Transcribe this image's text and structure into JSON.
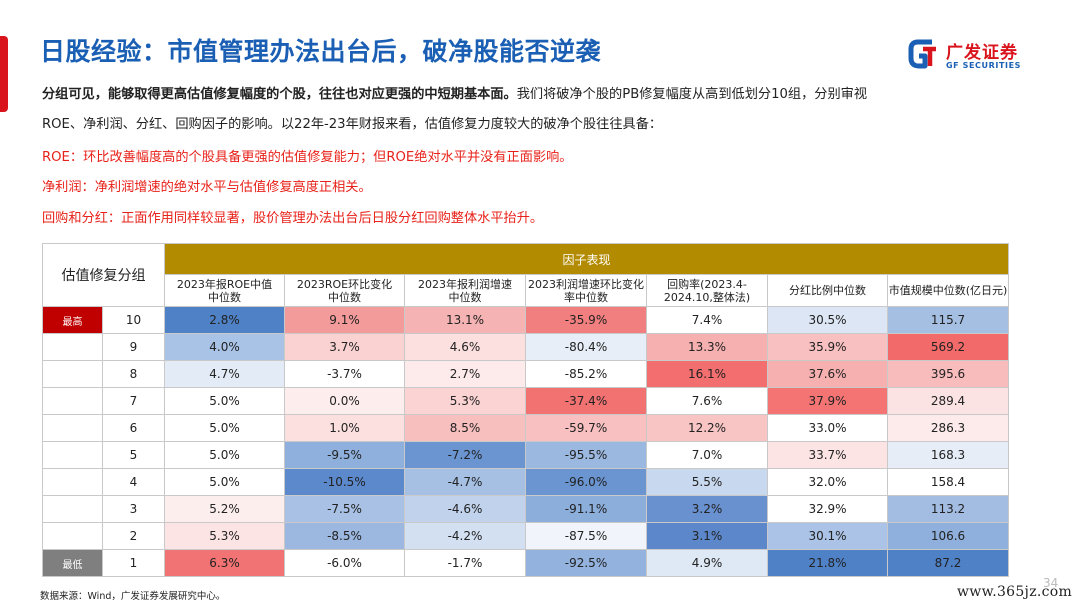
{
  "header": {
    "title": "日股经验：市值管理办法出台后，破净股能否逆袭",
    "logo_cn": "广发证券",
    "logo_en": "GF SECURITIES"
  },
  "body": {
    "p1_bold": "分组可见，能够取得更高估值修复幅度的个股，往往也对应更强的中短期基本面。",
    "p1_rest": "我们将破净个股的PB修复幅度从高到低划分10组，分别审视",
    "p2": "ROE、净利润、分红、回购因子的影响。以22年-23年财报来看，估值修复力度较大的破净个股往往具备：",
    "roe_point": "ROE：环比改善幅度高的个股具备更强的估值修复能力；但ROE绝对水平并没有正面影响。",
    "profit_point": "净利润：净利润增速的绝对水平与估值修复高度正相关。",
    "buyback_point": "回购和分红：正面作用同样较显著，股价管理办法出台后日股分红回购整体水平抬升。"
  },
  "table": {
    "group_header": "估值修复分组",
    "factor_header": "因子表现",
    "columns": [
      {
        "l1": "2023年报ROE中值",
        "l2": "中位数"
      },
      {
        "l1": "2023ROE环比变化",
        "l2": "中位数"
      },
      {
        "l1": "2023年报利润增速",
        "l2": "中位数"
      },
      {
        "l1": "2023利润增速环比变化",
        "l2": "率中位数"
      },
      {
        "l1": "回购率(2023.4-",
        "l2": "2024.10,整体法)"
      },
      {
        "l1": "分红比例中位数",
        "l2": ""
      },
      {
        "l1": "市值规模中位数(亿日元)",
        "l2": ""
      }
    ],
    "badge_high": "最高",
    "badge_low": "最低",
    "rows": [
      {
        "group": "10",
        "cells": [
          "2.8%",
          "9.1%",
          "13.1%",
          "-35.9%",
          "7.4%",
          "30.5%",
          "115.7"
        ],
        "colors": [
          "#4f81c7",
          "#f39b9b",
          "#f6b3b3",
          "#f27f7f",
          "#ffffff",
          "#dce6f4",
          "#a5bfe2"
        ]
      },
      {
        "group": "9",
        "cells": [
          "4.0%",
          "3.7%",
          "4.6%",
          "-80.4%",
          "13.3%",
          "35.9%",
          "569.2"
        ],
        "colors": [
          "#a9c3e6",
          "#fbd2d2",
          "#fce0e0",
          "#e7eef8",
          "#f6b0b0",
          "#f8c0c0",
          "#f26a6a"
        ]
      },
      {
        "group": "8",
        "cells": [
          "4.7%",
          "-3.7%",
          "2.7%",
          "-85.2%",
          "16.1%",
          "37.6%",
          "395.6"
        ],
        "colors": [
          "#e3ebf6",
          "#ffffff",
          "#fdeaea",
          "#ffffff",
          "#f36e6e",
          "#f6b0b0",
          "#f8bcbc"
        ]
      },
      {
        "group": "7",
        "cells": [
          "5.0%",
          "0.0%",
          "5.3%",
          "-37.4%",
          "7.6%",
          "37.9%",
          "289.4"
        ],
        "colors": [
          "#ffffff",
          "#fdeded",
          "#fbd3d3",
          "#f27171",
          "#ffffff",
          "#f47474",
          "#fce3e3"
        ]
      },
      {
        "group": "6",
        "cells": [
          "5.0%",
          "1.0%",
          "8.5%",
          "-59.7%",
          "12.2%",
          "33.0%",
          "286.3"
        ],
        "colors": [
          "#ffffff",
          "#fce0e0",
          "#f8bfbf",
          "#f8c0c0",
          "#f8c4c4",
          "#ffffff",
          "#fdeaea"
        ]
      },
      {
        "group": "5",
        "cells": [
          "5.0%",
          "-9.5%",
          "-7.2%",
          "-95.5%",
          "7.0%",
          "33.7%",
          "168.3"
        ],
        "colors": [
          "#ffffff",
          "#8fb0dc",
          "#6a95d1",
          "#9bb8e0",
          "#ffffff",
          "#fce4e4",
          "#e6edf7"
        ]
      },
      {
        "group": "4",
        "cells": [
          "5.0%",
          "-10.5%",
          "-4.7%",
          "-96.0%",
          "5.5%",
          "32.0%",
          "158.4"
        ],
        "colors": [
          "#ffffff",
          "#5b89cc",
          "#a6c0e4",
          "#6a95d1",
          "#c8d8ee",
          "#ffffff",
          "#ffffff"
        ]
      },
      {
        "group": "3",
        "cells": [
          "5.2%",
          "-7.5%",
          "-4.6%",
          "-91.1%",
          "3.2%",
          "32.9%",
          "113.2"
        ],
        "colors": [
          "#fdeeee",
          "#a8c1e5",
          "#c1d3ec",
          "#8caedb",
          "#6990cf",
          "#ffffff",
          "#a3bde2"
        ]
      },
      {
        "group": "2",
        "cells": [
          "5.3%",
          "-8.5%",
          "-4.2%",
          "-87.5%",
          "3.1%",
          "30.1%",
          "106.6"
        ],
        "colors": [
          "#fce4e4",
          "#9cb8e1",
          "#d3e0f2",
          "#f1f5fb",
          "#5c88cb",
          "#aac3e6",
          "#8fb0dc"
        ]
      },
      {
        "group": "1",
        "cells": [
          "6.3%",
          "-6.0%",
          "-1.7%",
          "-92.5%",
          "4.9%",
          "21.8%",
          "87.2"
        ],
        "colors": [
          "#f27373",
          "#ffffff",
          "#ffffff",
          "#93b2de",
          "#dfe8f5",
          "#4f81c7",
          "#4f81c7"
        ]
      }
    ]
  },
  "footer": {
    "source": "数据来源：Wind，广发证券发展研究中心。",
    "watermark": "www.365jz.com",
    "page": "34"
  },
  "colors": {
    "title_blue": "#1a5fb4",
    "accent_red": "#d9141c",
    "factor_gold": "#b38b00"
  }
}
